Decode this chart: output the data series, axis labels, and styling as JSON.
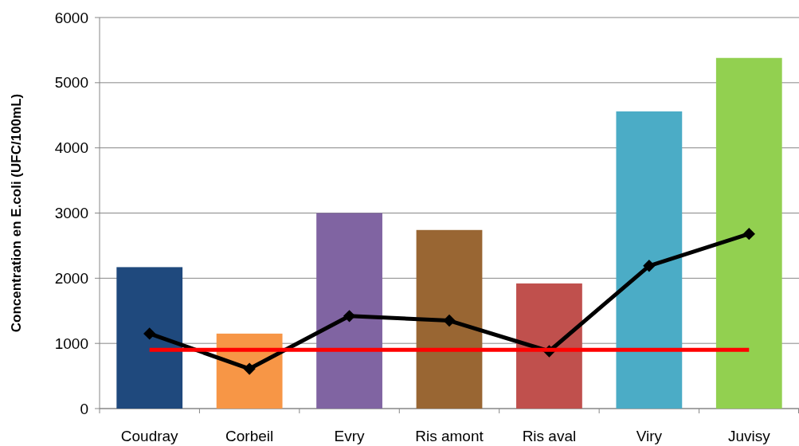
{
  "chart_data": {
    "type": "bar",
    "ylabel": "Concentration en E.coli (UFC/100mL)",
    "categories": [
      "Coudray",
      "Corbeil",
      "Evry",
      "Ris amont",
      "Ris aval",
      "Viry",
      "Juvisy"
    ],
    "series": [
      {
        "colors": [
          "#1f497d",
          "#f79646",
          "#8064a2",
          "#996633",
          "#c0504d",
          "#4bacc6",
          "#92d050"
        ],
        "values": [
          2170,
          1150,
          3000,
          2740,
          1920,
          4560,
          5380
        ]
      },
      {
        "type": "line",
        "color": "#000000",
        "marker": "diamond",
        "values": [
          1150,
          610,
          1420,
          1350,
          880,
          2190,
          2680
        ]
      },
      {
        "type": "line",
        "color": "#ff0000",
        "marker": "none",
        "values": [
          900,
          900,
          900,
          900,
          900,
          900,
          900
        ]
      }
    ],
    "ylim": [
      0,
      6000
    ],
    "yticks": [
      0,
      1000,
      2000,
      3000,
      4000,
      5000,
      6000
    ],
    "grid": "y"
  }
}
